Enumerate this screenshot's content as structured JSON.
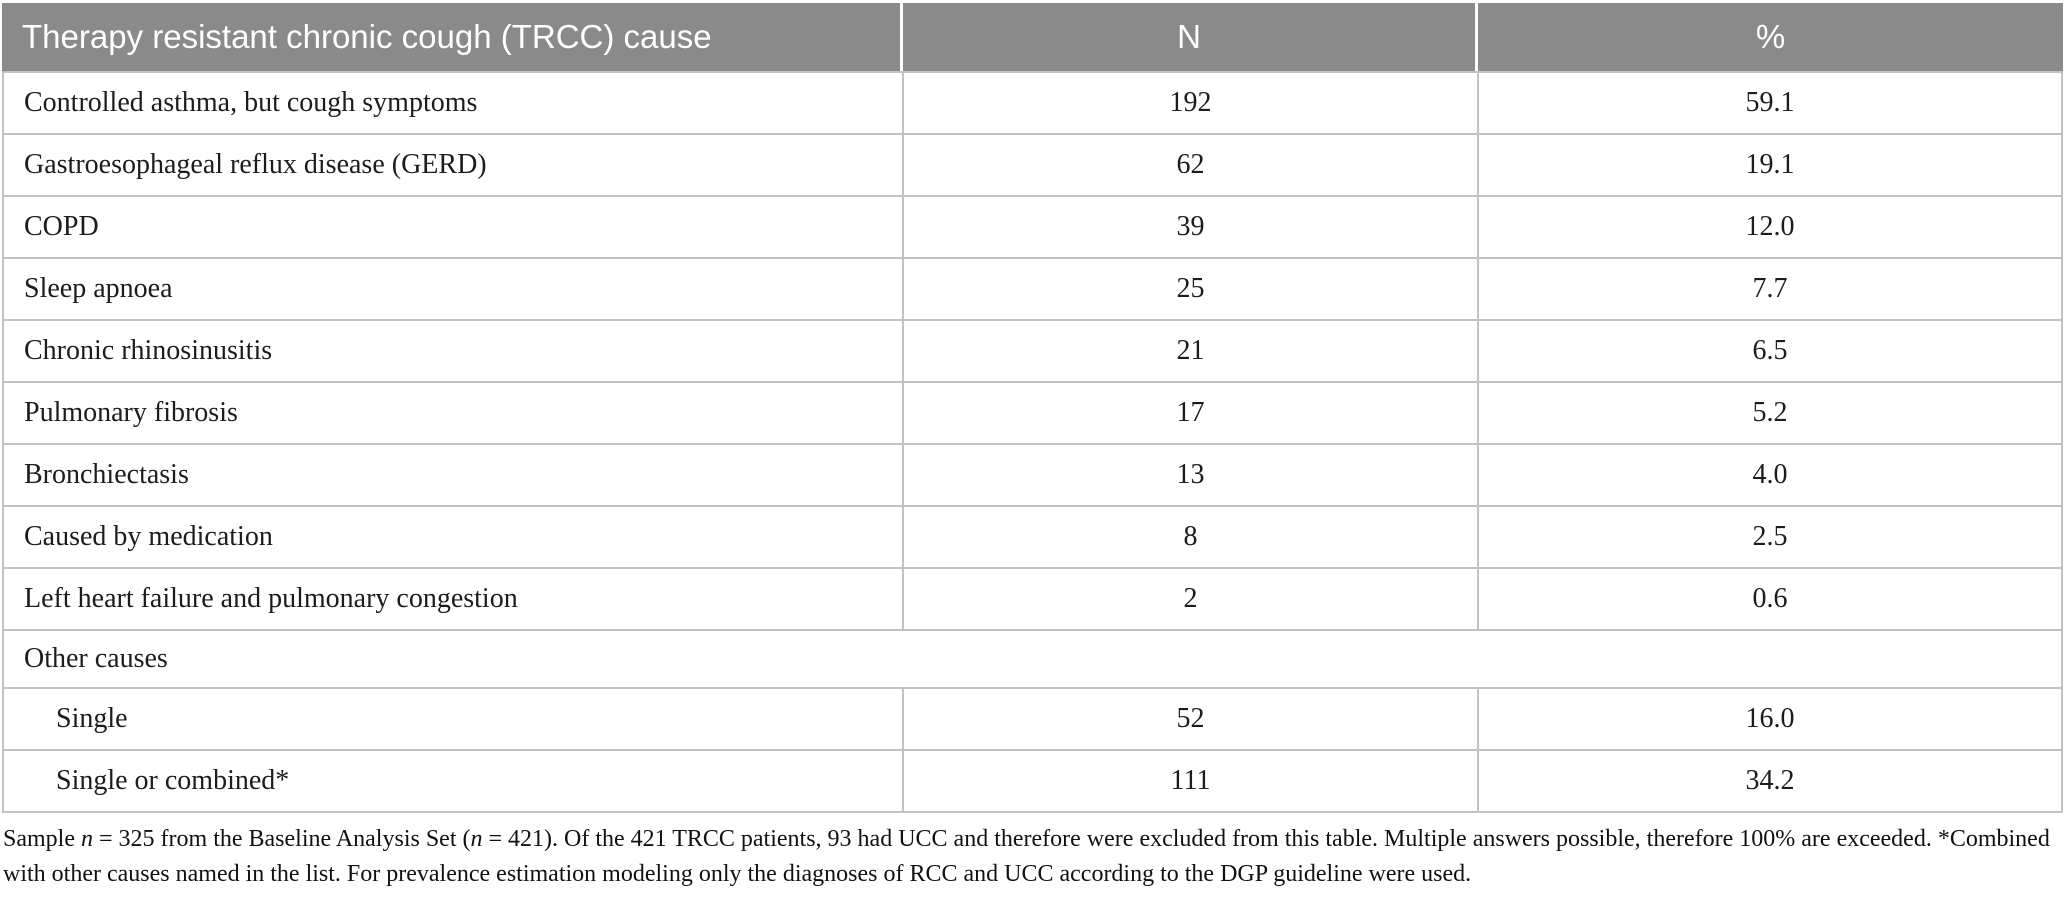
{
  "colors": {
    "header_bg": "#8a8a8a",
    "header_text": "#ffffff",
    "grid_border": "#c2c2c2",
    "body_text": "#1c1c1c"
  },
  "table": {
    "header": {
      "cause": "Therapy resistant chronic cough (TRCC) cause",
      "n": "N",
      "pct": "%"
    },
    "rows": [
      {
        "label": "Controlled asthma, but cough symptoms",
        "n": "192",
        "pct": "59.1"
      },
      {
        "label": "Gastroesophageal reflux disease (GERD)",
        "n": "62",
        "pct": "19.1"
      },
      {
        "label": "COPD",
        "n": "39",
        "pct": "12.0"
      },
      {
        "label": "Sleep apnoea",
        "n": "25",
        "pct": "7.7"
      },
      {
        "label": "Chronic rhinosinusitis",
        "n": "21",
        "pct": "6.5"
      },
      {
        "label": "Pulmonary fibrosis",
        "n": "17",
        "pct": "5.2"
      },
      {
        "label": "Bronchiectasis",
        "n": "13",
        "pct": "4.0"
      },
      {
        "label": "Caused by medication",
        "n": "8",
        "pct": "2.5"
      },
      {
        "label": "Left heart failure and pulmonary congestion",
        "n": "2",
        "pct": "0.6"
      },
      {
        "label": "Other causes",
        "n": "",
        "pct": ""
      },
      {
        "label": "Single",
        "n": "52",
        "pct": "16.0"
      },
      {
        "label": "Single or combined*",
        "n": "111",
        "pct": "34.2"
      }
    ],
    "footnote_parts": [
      {
        "text": "Sample "
      },
      {
        "text": "n"
      },
      {
        "text": " = 325 from the Baseline Analysis Set ("
      },
      {
        "text": "n"
      },
      {
        "text": " = 421). Of the 421 TRCC patients, 93 had UCC and therefore were excluded from this table. Multiple answers possible, therefore 100% are exceeded. *Combined with other causes named in the list. For prevalence estimation modeling only the diagnoses of RCC and UCC according to the DGP guideline were used."
      }
    ]
  },
  "chart_data": {
    "type": "table",
    "title": "Therapy resistant chronic cough (TRCC) cause",
    "columns": [
      "Therapy resistant chronic cough (TRCC) cause",
      "N",
      "%"
    ],
    "categories": [
      "Controlled asthma, but cough symptoms",
      "Gastroesophageal reflux disease (GERD)",
      "COPD",
      "Sleep apnoea",
      "Chronic rhinosinusitis",
      "Pulmonary fibrosis",
      "Bronchiectasis",
      "Caused by medication",
      "Left heart failure and pulmonary congestion",
      "Other causes: Single",
      "Other causes: Single or combined*"
    ],
    "series": [
      {
        "name": "N",
        "values": [
          192,
          62,
          39,
          25,
          21,
          17,
          13,
          8,
          2,
          52,
          111
        ]
      },
      {
        "name": "%",
        "values": [
          59.1,
          19.1,
          12.0,
          7.7,
          6.5,
          5.2,
          4.0,
          2.5,
          0.6,
          16.0,
          34.2
        ]
      }
    ]
  }
}
